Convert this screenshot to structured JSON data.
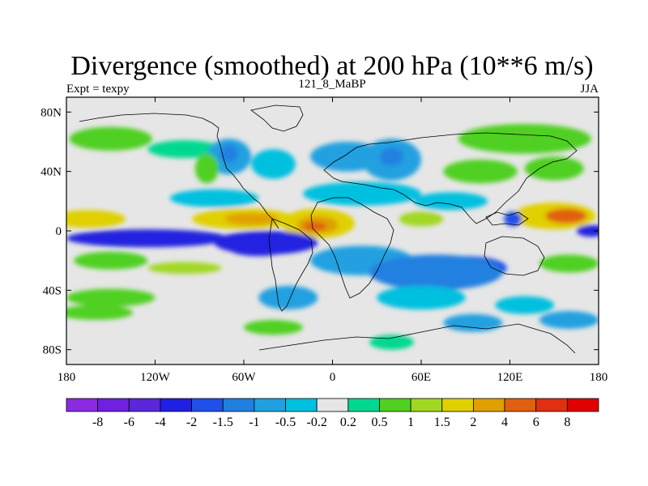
{
  "chart_data": {
    "type": "heatmap",
    "title": "Divergence (smoothed) at 200 hPa (10**6 m/s)",
    "left_label": "Expt = texpy",
    "center_label": "121_8_MaBP",
    "right_label": "JJA",
    "x_ticks": [
      {
        "value": -180,
        "label": "180"
      },
      {
        "value": -120,
        "label": "120W"
      },
      {
        "value": -60,
        "label": "60W"
      },
      {
        "value": 0,
        "label": "0"
      },
      {
        "value": 60,
        "label": "60E"
      },
      {
        "value": 120,
        "label": "120E"
      },
      {
        "value": 180,
        "label": "180"
      }
    ],
    "y_ticks": [
      {
        "value": 80,
        "label": "80N"
      },
      {
        "value": 40,
        "label": "40N"
      },
      {
        "value": 0,
        "label": "0"
      },
      {
        "value": -40,
        "label": "40S"
      },
      {
        "value": -80,
        "label": "80S"
      }
    ],
    "xlim": [
      -180,
      180
    ],
    "ylim": [
      -90,
      90
    ],
    "colorbar": {
      "labels": [
        "-8",
        "-6",
        "-4",
        "-2",
        "-1.5",
        "-1",
        "-0.5",
        "-0.2",
        "0.2",
        "0.5",
        "1",
        "1.5",
        "2",
        "4",
        "6",
        "8"
      ],
      "colors": [
        "#8a2be2",
        "#7020e0",
        "#5a28d8",
        "#2020e0",
        "#2050e8",
        "#2080e0",
        "#20a0e0",
        "#00c0e0",
        "#e6e6e6",
        "#00d890",
        "#50d020",
        "#a0d820",
        "#e0d000",
        "#e0a000",
        "#e06010",
        "#e03010",
        "#e00000"
      ]
    },
    "regions": [
      {
        "level": 10,
        "lon": -150,
        "lat": 62,
        "rlon": 28,
        "rlat": 8
      },
      {
        "level": 10,
        "lon": 130,
        "lat": 62,
        "rlon": 45,
        "rlat": 10
      },
      {
        "level": 9,
        "lon": -100,
        "lat": 55,
        "rlon": 25,
        "rlat": 6
      },
      {
        "level": 6,
        "lon": -70,
        "lat": 50,
        "rlon": 15,
        "rlat": 12
      },
      {
        "level": 5,
        "lon": -70,
        "lat": 52,
        "rlon": 6,
        "rlat": 6
      },
      {
        "level": 10,
        "lon": -85,
        "lat": 42,
        "rlon": 8,
        "rlat": 10
      },
      {
        "level": 7,
        "lon": -40,
        "lat": 45,
        "rlon": 15,
        "rlat": 10
      },
      {
        "level": 6,
        "lon": 10,
        "lat": 50,
        "rlon": 25,
        "rlat": 10
      },
      {
        "level": 6,
        "lon": 40,
        "lat": 48,
        "rlon": 20,
        "rlat": 14
      },
      {
        "level": 5,
        "lon": 40,
        "lat": 50,
        "rlon": 8,
        "rlat": 6
      },
      {
        "level": 10,
        "lon": 100,
        "lat": 40,
        "rlon": 25,
        "rlat": 8
      },
      {
        "level": 10,
        "lon": 150,
        "lat": 42,
        "rlon": 20,
        "rlat": 8
      },
      {
        "level": 7,
        "lon": -80,
        "lat": 22,
        "rlon": 30,
        "rlat": 6
      },
      {
        "level": 7,
        "lon": 20,
        "lat": 25,
        "rlon": 40,
        "rlat": 8
      },
      {
        "level": 7,
        "lon": 80,
        "lat": 20,
        "rlon": 25,
        "rlat": 6
      },
      {
        "level": 12,
        "lon": -165,
        "lat": 8,
        "rlon": 25,
        "rlat": 6
      },
      {
        "level": 12,
        "lon": -60,
        "lat": 8,
        "rlon": 35,
        "rlat": 7
      },
      {
        "level": 13,
        "lon": -55,
        "lat": 8,
        "rlon": 18,
        "rlat": 4
      },
      {
        "level": 12,
        "lon": -10,
        "lat": 5,
        "rlon": 25,
        "rlat": 10
      },
      {
        "level": 13,
        "lon": -10,
        "lat": 4,
        "rlon": 14,
        "rlat": 6
      },
      {
        "level": 14,
        "lon": -12,
        "lat": 3,
        "rlon": 8,
        "rlat": 3
      },
      {
        "level": 11,
        "lon": 60,
        "lat": 8,
        "rlon": 15,
        "rlat": 5
      },
      {
        "level": 12,
        "lon": 150,
        "lat": 10,
        "rlon": 28,
        "rlat": 9
      },
      {
        "level": 14,
        "lon": 158,
        "lat": 10,
        "rlon": 14,
        "rlat": 5
      },
      {
        "level": 4,
        "lon": 122,
        "lat": 8,
        "rlon": 6,
        "rlat": 5
      },
      {
        "level": 3,
        "lon": -125,
        "lat": -5,
        "rlon": 55,
        "rlat": 6
      },
      {
        "level": 3,
        "lon": -45,
        "lat": -8,
        "rlon": 35,
        "rlat": 8
      },
      {
        "level": 3,
        "lon": -50,
        "lat": -12,
        "rlon": 20,
        "rlat": 5
      },
      {
        "level": 3,
        "lon": 175,
        "lat": 0,
        "rlon": 10,
        "rlat": 4
      },
      {
        "level": 6,
        "lon": 20,
        "lat": -20,
        "rlon": 35,
        "rlat": 10
      },
      {
        "level": 4,
        "lon": 90,
        "lat": -25,
        "rlon": 28,
        "rlat": 8
      },
      {
        "level": 5,
        "lon": 70,
        "lat": -28,
        "rlon": 45,
        "rlat": 12
      },
      {
        "level": 10,
        "lon": -150,
        "lat": -20,
        "rlon": 25,
        "rlat": 6
      },
      {
        "level": 10,
        "lon": 160,
        "lat": -22,
        "rlon": 20,
        "rlat": 6
      },
      {
        "level": 11,
        "lon": -100,
        "lat": -25,
        "rlon": 25,
        "rlat": 4
      },
      {
        "level": 10,
        "lon": -150,
        "lat": -45,
        "rlon": 30,
        "rlat": 6
      },
      {
        "level": 6,
        "lon": -30,
        "lat": -45,
        "rlon": 20,
        "rlat": 8
      },
      {
        "level": 10,
        "lon": -40,
        "lat": -65,
        "rlon": 20,
        "rlat": 5
      },
      {
        "level": 7,
        "lon": 60,
        "lat": -45,
        "rlon": 30,
        "rlat": 8
      },
      {
        "level": 6,
        "lon": 95,
        "lat": -62,
        "rlon": 20,
        "rlat": 6
      },
      {
        "level": 7,
        "lon": 130,
        "lat": -50,
        "rlon": 20,
        "rlat": 6
      },
      {
        "level": 6,
        "lon": 160,
        "lat": -60,
        "rlon": 20,
        "rlat": 6
      },
      {
        "level": 10,
        "lon": -160,
        "lat": -55,
        "rlon": 25,
        "rlat": 5
      },
      {
        "level": 9,
        "lon": 40,
        "lat": -75,
        "rlon": 15,
        "rlat": 5
      }
    ]
  }
}
